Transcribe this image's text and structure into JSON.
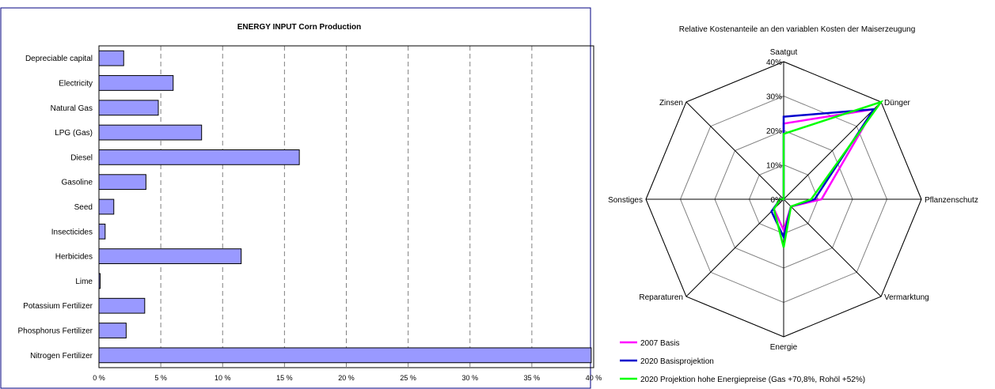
{
  "chart_data": [
    {
      "type": "bar",
      "orientation": "horizontal",
      "title": "ENERGY INPUT Corn Production",
      "categories": [
        "Depreciable capital",
        "Electricity",
        "Natural Gas",
        "LPG (Gas)",
        "Diesel",
        "Gasoline",
        "Seed",
        "Insecticides",
        "Herbicides",
        "Lime",
        "Potassium Fertilizer",
        "Phosphorus Fertilizer",
        "Nitrogen Fertilizer"
      ],
      "values": [
        2.0,
        6.0,
        4.8,
        8.3,
        16.2,
        3.8,
        1.2,
        0.5,
        11.5,
        0.1,
        3.7,
        2.2,
        39.8
      ],
      "xlim": [
        0,
        40
      ],
      "xticks": [
        0,
        5,
        10,
        15,
        20,
        25,
        30,
        35,
        40
      ],
      "xtick_labels": [
        "0 %",
        "5 %",
        "10 %",
        "15 %",
        "20 %",
        "25 %",
        "30 %",
        "35 %",
        "40 %"
      ],
      "grid": "vertical dashed",
      "colors": {
        "bar": "#9999ff",
        "bar_edge": "#000000",
        "frame": "#000080"
      }
    },
    {
      "type": "radar",
      "title": "Relative Kostenanteile an den variablen Kosten der Maiserzeugung",
      "axes": [
        "Saatgut",
        "Dünger",
        "Pflanzenschutz",
        "Vermarktung",
        "Energie",
        "Reparaturen",
        "Sonstiges",
        "Zinsen"
      ],
      "rlim": [
        0,
        40
      ],
      "rticks": [
        0,
        10,
        20,
        30,
        40
      ],
      "rtick_labels": [
        "0%",
        "10%",
        "20%",
        "30%",
        "40%"
      ],
      "series": [
        {
          "name": "2007 Basis",
          "color": "#ff00ff",
          "values": [
            22,
            37,
            11,
            3,
            9,
            4,
            1,
            0
          ]
        },
        {
          "name": "2020 Basisprojektion",
          "color": "#0000cc",
          "values": [
            24,
            37,
            9,
            3,
            11,
            5,
            1,
            0
          ]
        },
        {
          "name": "2020 Projektion hohe Energiepreise (Gas +70,8%, Rohöl +52%)",
          "color": "#00ff00",
          "values": [
            19,
            40,
            8,
            3,
            14,
            4,
            1,
            0
          ]
        }
      ],
      "legend_position": "bottom-left"
    }
  ]
}
